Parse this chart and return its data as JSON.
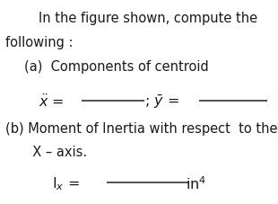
{
  "background_color": "#ffffff",
  "text_color": "#1a1a1a",
  "line1": "In the figure shown, compute the",
  "line2": "following :",
  "line3": "(a)  Components of centroid",
  "part_b_line1": "(b) Moment of Inertia with respect  to the",
  "part_b_line2": "  X – axis.",
  "font_size_main": 10.5,
  "font_size_eq": 11.5,
  "line_color": "#333333"
}
